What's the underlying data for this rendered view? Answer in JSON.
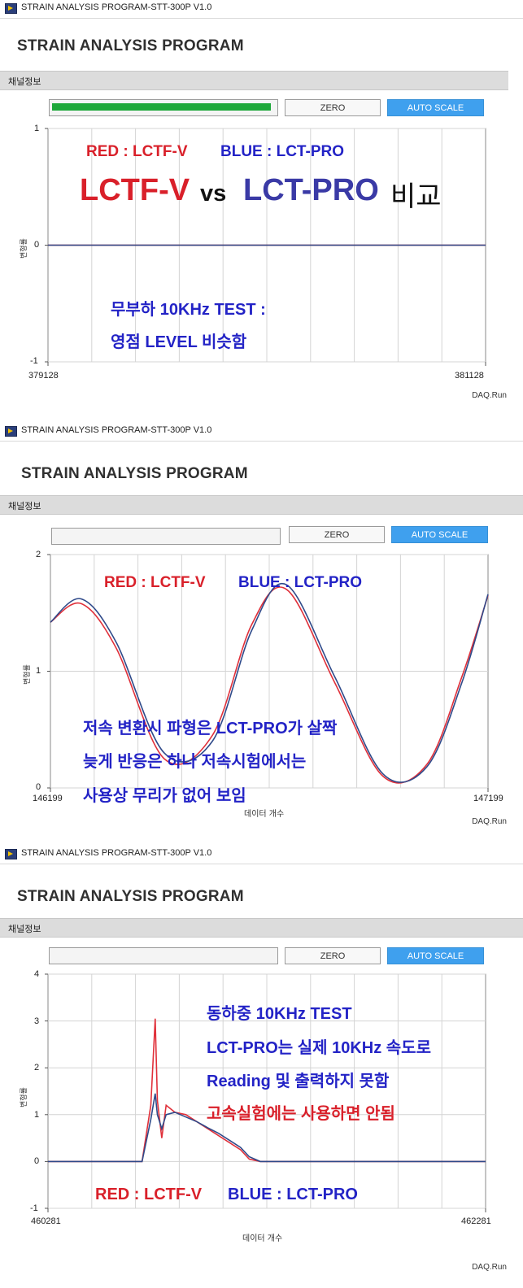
{
  "panels": [
    {
      "window_title": "STRAIN ANALYSIS PROGRAM-STT-300P V1.0",
      "app_title": "STRAIN ANALYSIS PROGRAM",
      "section_label": "채널정보",
      "progress_fraction": 0.99,
      "zero_label": "ZERO",
      "autoscale_label": "AUTO SCALE",
      "ylabel": "변형률",
      "xlabel": "",
      "footer": "DAQ.Run",
      "x_min_label": "379128",
      "x_max_label": "381128",
      "y_ticks": [
        "1",
        "0",
        "-1"
      ],
      "annotations": {
        "legend_red": "RED : LCTF-V",
        "legend_blue": "BLUE : LCT-PRO",
        "compare_red": "LCTF-V",
        "compare_vs": "vs",
        "compare_blue": "LCT-PRO",
        "compare_suffix": "비교",
        "note1": "무부하 10KHz TEST :",
        "note2": "영점 LEVEL 비슷함"
      }
    },
    {
      "window_title": "STRAIN ANALYSIS PROGRAM-STT-300P V1.0",
      "app_title": "STRAIN ANALYSIS PROGRAM",
      "section_label": "채널정보",
      "progress_fraction": 0,
      "zero_label": "ZERO",
      "autoscale_label": "AUTO SCALE",
      "ylabel": "변형률",
      "xlabel": "데이터 개수",
      "footer": "DAQ.Run",
      "x_min_label": "146199",
      "x_max_label": "147199",
      "y_ticks": [
        "2",
        "1",
        "0"
      ],
      "annotations": {
        "legend_red": "RED : LCTF-V",
        "legend_blue": "BLUE : LCT-PRO",
        "note1": "저속 변환시 파형은 LCT-PRO가 살짝",
        "note2": "늦게 반응은 하나 저속시험에서는",
        "note3": "사용상 무리가 없어 보임"
      }
    },
    {
      "window_title": "STRAIN ANALYSIS PROGRAM-STT-300P V1.0",
      "app_title": "STRAIN ANALYSIS PROGRAM",
      "section_label": "채널정보",
      "progress_fraction": 0,
      "zero_label": "ZERO",
      "autoscale_label": "AUTO SCALE",
      "ylabel": "변형률",
      "xlabel": "데이터 개수",
      "footer": "DAQ.Run",
      "x_min_label": "460281",
      "x_max_label": "462281",
      "y_ticks": [
        "4",
        "3",
        "2",
        "1",
        "0",
        "-1"
      ],
      "annotations": {
        "note1": "동하중 10KHz TEST",
        "note2": "LCT-PRO는 실제 10KHz 속도로",
        "note3": "Reading 및 출력하지 못함",
        "note4": "고속실험에는 사용하면 안됨",
        "legend_red": "RED : LCTF-V",
        "legend_blue": "BLUE : LCT-PRO"
      }
    }
  ],
  "colors": {
    "red_series": "#e0303a",
    "blue_series": "#2f4a8a",
    "accent_button": "#3fa0ee",
    "progress_green": "#1ea83a"
  },
  "chart_data": [
    {
      "type": "line",
      "x_range": [
        379128,
        381128
      ],
      "ylim": [
        -1,
        1
      ],
      "grid": true,
      "series": [
        {
          "name": "RED : LCTF-V",
          "x": [
            379128,
            381128
          ],
          "values": [
            0,
            0
          ]
        },
        {
          "name": "BLUE : LCT-PRO",
          "x": [
            379128,
            381128
          ],
          "values": [
            0,
            0
          ]
        }
      ]
    },
    {
      "type": "line",
      "x_range": [
        146199,
        147199
      ],
      "ylim": [
        0,
        2
      ],
      "grid": true,
      "series": [
        {
          "name": "RED : LCTF-V",
          "x": [
            146199,
            146269,
            146349,
            146459,
            146569,
            146659,
            146739,
            146849,
            146959,
            147059,
            147139,
            147199
          ],
          "values": [
            1.42,
            1.58,
            1.2,
            0.25,
            0.45,
            1.4,
            1.7,
            0.9,
            0.1,
            0.2,
            0.95,
            1.65
          ]
        },
        {
          "name": "BLUE : LCT-PRO",
          "x": [
            146199,
            146269,
            146349,
            146459,
            146569,
            146659,
            146739,
            146849,
            146959,
            147059,
            147139,
            147199
          ],
          "values": [
            1.42,
            1.62,
            1.25,
            0.3,
            0.4,
            1.35,
            1.74,
            0.95,
            0.12,
            0.18,
            0.9,
            1.66
          ]
        }
      ]
    },
    {
      "type": "line",
      "x_range": [
        460281,
        462281
      ],
      "ylim": [
        -1,
        4
      ],
      "grid": true,
      "series": [
        {
          "name": "RED : LCTF-V",
          "x": [
            460281,
            460711,
            460751,
            460771,
            460781,
            460801,
            460821,
            460861,
            460911,
            460961,
            461011,
            461061,
            461111,
            461161,
            461201,
            461251,
            462281
          ],
          "values": [
            0,
            0,
            1.2,
            3.05,
            1.3,
            0.5,
            1.2,
            1.05,
            1.0,
            0.85,
            0.7,
            0.55,
            0.4,
            0.25,
            0.05,
            0,
            0
          ]
        },
        {
          "name": "BLUE : LCT-PRO",
          "x": [
            460281,
            460711,
            460751,
            460771,
            460781,
            460801,
            460821,
            460861,
            460911,
            460961,
            461011,
            461061,
            461111,
            461161,
            461201,
            461251,
            462281
          ],
          "values": [
            0,
            0,
            0.9,
            1.45,
            1.0,
            0.7,
            1.0,
            1.05,
            0.95,
            0.85,
            0.72,
            0.6,
            0.45,
            0.3,
            0.1,
            0,
            0
          ]
        }
      ]
    }
  ]
}
